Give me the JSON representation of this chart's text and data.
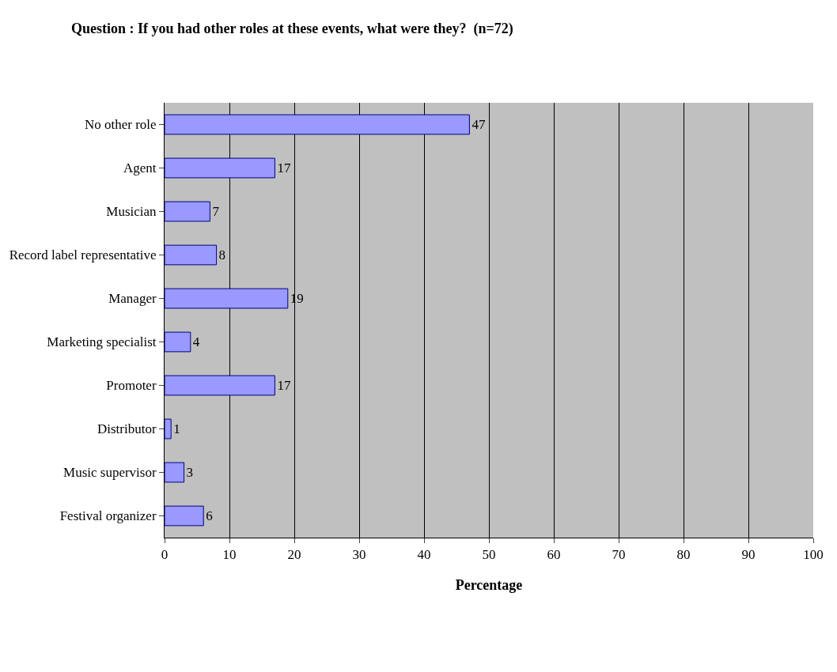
{
  "chart_data": {
    "type": "bar",
    "orientation": "horizontal",
    "title": "Question : If you had other roles at these events, what were they?  (n=72)",
    "xlabel": "Percentage",
    "categories": [
      "No other role",
      "Agent",
      "Musician",
      "Record label representative",
      "Manager",
      "Marketing specialist",
      "Promoter",
      "Distributor",
      "Music supervisor",
      "Festival organizer"
    ],
    "values": [
      47,
      17,
      7,
      8,
      19,
      4,
      17,
      1,
      3,
      6
    ],
    "color": "#9999ff",
    "xlim": [
      0,
      100
    ],
    "xticks": [
      0,
      10,
      20,
      30,
      40,
      50,
      60,
      70,
      80,
      90,
      100
    ],
    "grid": "x",
    "data_labels": true
  }
}
